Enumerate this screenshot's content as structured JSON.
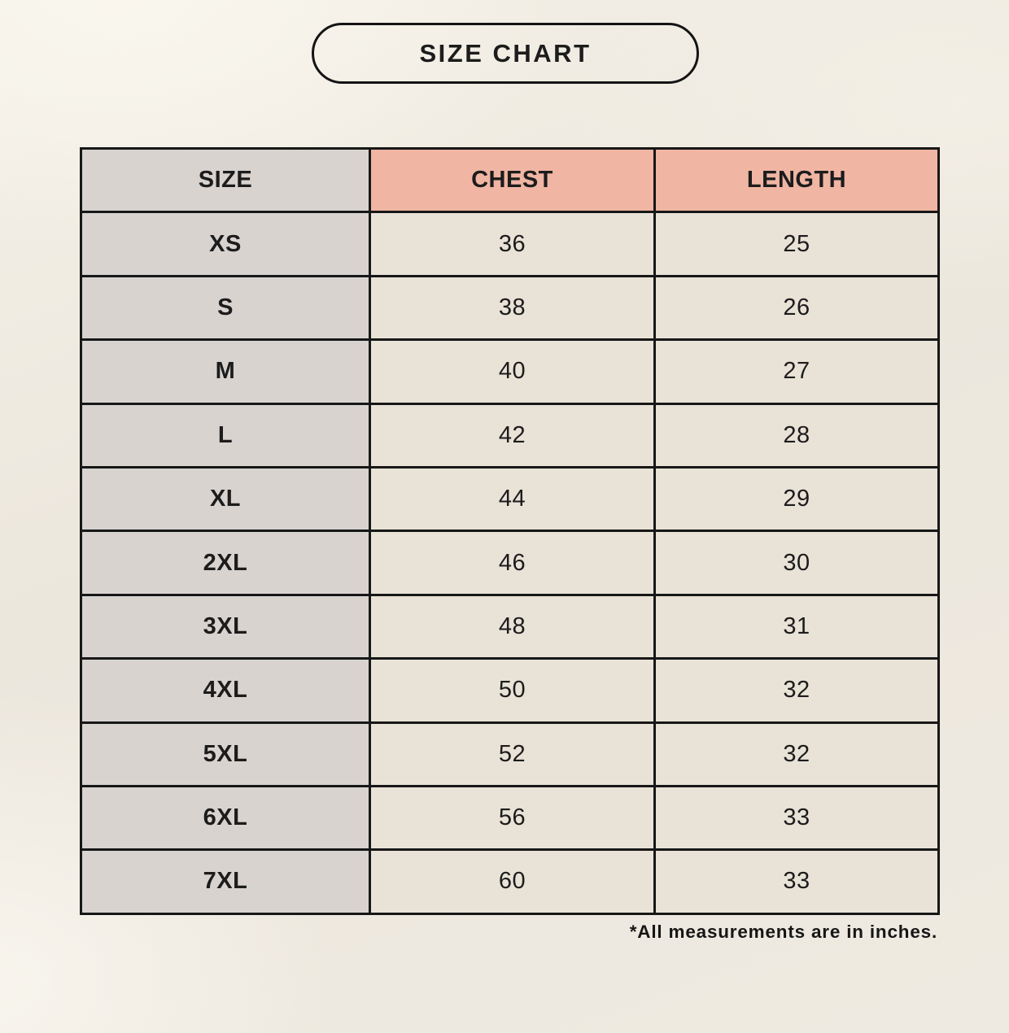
{
  "header": {
    "title": "SIZE CHART"
  },
  "table": {
    "columns": [
      "SIZE",
      "CHEST",
      "LENGTH"
    ],
    "rows": [
      {
        "size": "XS",
        "chest": "36",
        "length": "25"
      },
      {
        "size": "S",
        "chest": "38",
        "length": "26"
      },
      {
        "size": "M",
        "chest": "40",
        "length": "27"
      },
      {
        "size": "L",
        "chest": "42",
        "length": "28"
      },
      {
        "size": "XL",
        "chest": "44",
        "length": "29"
      },
      {
        "size": "2XL",
        "chest": "46",
        "length": "30"
      },
      {
        "size": "3XL",
        "chest": "48",
        "length": "31"
      },
      {
        "size": "4XL",
        "chest": "50",
        "length": "32"
      },
      {
        "size": "5XL",
        "chest": "52",
        "length": "32"
      },
      {
        "size": "6XL",
        "chest": "56",
        "length": "33"
      },
      {
        "size": "7XL",
        "chest": "60",
        "length": "33"
      }
    ]
  },
  "footnote": {
    "text": "*All measurements are in inches."
  },
  "colors": {
    "header_size_bg": "#d9d3d0",
    "header_measure_bg": "#f0b5a3",
    "size_col_bg": "#d9d3d0",
    "data_cell_bg": "#e9e2d7",
    "border": "#171717",
    "text": "#1c1c1c"
  }
}
